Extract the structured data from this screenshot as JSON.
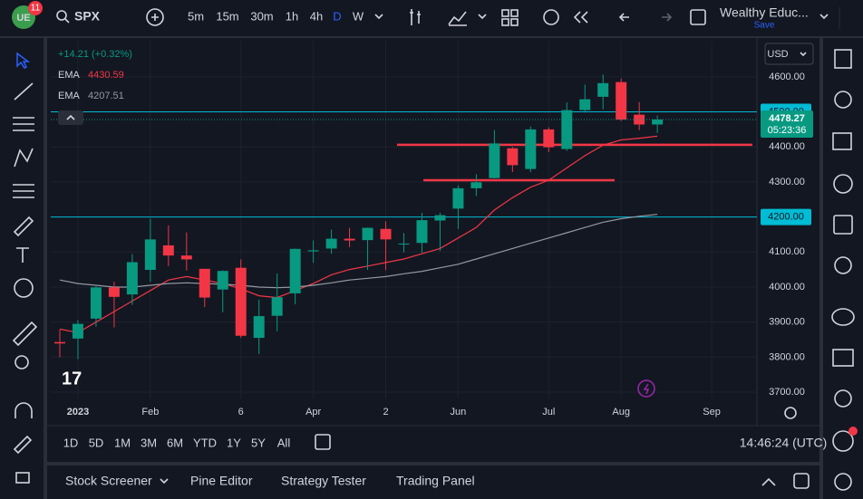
{
  "header": {
    "badge": "11",
    "symbol": "SPX",
    "intervals": [
      "5m",
      "15m",
      "30m",
      "1h",
      "4h",
      "D",
      "W"
    ],
    "active_interval": 5,
    "layout_name": "Wealthy Educ...",
    "save": "Save"
  },
  "chart_data": {
    "type": "candlestick",
    "change_label": "+14.21 (+0.32%)",
    "currency": "USD",
    "categories": [
      null,
      "2023",
      null,
      null,
      null,
      "Feb",
      null,
      null,
      null,
      null,
      "6",
      null,
      null,
      null,
      "Apr",
      null,
      null,
      null,
      "2",
      null,
      null,
      null,
      "Jun",
      null,
      null,
      null,
      null,
      "Jul",
      null,
      null,
      null,
      "Aug",
      null,
      null,
      null,
      null,
      "Sep",
      null,
      null
    ],
    "open": [
      3843,
      3853,
      3910,
      3999,
      3979,
      4049,
      4119,
      4090,
      4052,
      3993,
      4055,
      3855,
      3918,
      3982,
      4102,
      4110,
      4138,
      4134,
      4166,
      4124,
      4126,
      4190,
      4224,
      4282,
      4311,
      4396,
      4337,
      4450,
      4394,
      4505,
      4543,
      4585,
      4492,
      4464,
      null,
      null,
      null,
      null,
      null
    ],
    "high": [
      3878,
      3906,
      4003,
      4015,
      4094,
      4195,
      4176,
      4156,
      4052,
      4048,
      4079,
      3964,
      4039,
      4110,
      4133,
      4164,
      4169,
      4170,
      4187,
      4154,
      4212,
      4212,
      4290,
      4322,
      4448,
      4400,
      4458,
      4456,
      4527,
      4578,
      4607,
      4595,
      4528,
      4490,
      null,
      null,
      null,
      null,
      null
    ],
    "low": [
      3800,
      3794,
      3887,
      3885,
      3949,
      4015,
      4060,
      4047,
      3943,
      3928,
      3855,
      3809,
      3874,
      3951,
      4069,
      4095,
      4114,
      4049,
      4048,
      4099,
      4098,
      4103,
      4166,
      4260,
      4310,
      4328,
      4328,
      4385,
      4389,
      4498,
      4507,
      4474,
      4448,
      4440,
      null,
      null,
      null,
      null,
      null
    ],
    "close": [
      3839,
      3895,
      3999,
      3972,
      4071,
      4136,
      4090,
      4079,
      3970,
      4046,
      3861,
      3917,
      3971,
      4109,
      4105,
      4138,
      4133,
      4169,
      4136,
      4124,
      4191,
      4205,
      4282,
      4299,
      4410,
      4348,
      4450,
      4399,
      4505,
      4536,
      4582,
      4478,
      4464,
      4478.27,
      null,
      null,
      null,
      null,
      null
    ],
    "up_color": "#089981",
    "down_color": "#f23645",
    "series": [
      {
        "name": "EMA",
        "color": "#f23645",
        "values": [
          3880,
          3870,
          3900,
          3930,
          3960,
          3990,
          4020,
          4030,
          4020,
          4010,
          3995,
          3975,
          3970,
          3990,
          4010,
          4035,
          4050,
          4060,
          4070,
          4080,
          4095,
          4110,
          4140,
          4170,
          4220,
          4255,
          4285,
          4305,
          4340,
          4375,
          4405,
          4420,
          4425,
          4430.59,
          null,
          null,
          null,
          null,
          null
        ]
      },
      {
        "name": "EMA",
        "color": "#9598a1",
        "values": [
          4020,
          4010,
          4005,
          4000,
          4000,
          4005,
          4010,
          4012,
          4010,
          4008,
          4005,
          4000,
          3998,
          4000,
          4005,
          4012,
          4020,
          4025,
          4030,
          4038,
          4045,
          4055,
          4065,
          4080,
          4095,
          4110,
          4125,
          4140,
          4155,
          4170,
          4185,
          4195,
          4202,
          4207.51,
          null,
          null,
          null,
          null,
          null
        ]
      }
    ],
    "ylim": [
      3682,
      4703
    ],
    "yticks": [
      {
        "value": 4600,
        "label": "4600.00"
      },
      {
        "value": 4400,
        "label": "4400.00"
      },
      {
        "value": 4300,
        "label": "4300.00"
      },
      {
        "value": 4100,
        "label": "4100.00"
      },
      {
        "value": 4000,
        "label": "4000.00"
      },
      {
        "value": 3900,
        "label": "3900.00"
      },
      {
        "value": 3800,
        "label": "3800.00"
      },
      {
        "value": 3700,
        "label": "3700.00"
      }
    ],
    "hlines": [
      {
        "value": 4500,
        "label": "4500.00",
        "color": "#00bcd4"
      },
      {
        "value": 4200,
        "label": "4200.00",
        "color": "#00bcd4"
      }
    ],
    "drawn_levels": [
      {
        "value": 4406,
        "color": "#f23645"
      },
      {
        "value": 4305,
        "color": "#f23645"
      }
    ],
    "countdown": "05:23:36",
    "grid": true
  },
  "range_bar": {
    "ranges": [
      "1D",
      "5D",
      "1M",
      "3M",
      "6M",
      "YTD",
      "1Y",
      "5Y",
      "All"
    ],
    "clock": "14:46:24 (UTC)"
  },
  "bottom_panel": {
    "tabs": [
      "Stock Screener",
      "Pine Editor",
      "Strategy Tester",
      "Trading Panel"
    ]
  }
}
